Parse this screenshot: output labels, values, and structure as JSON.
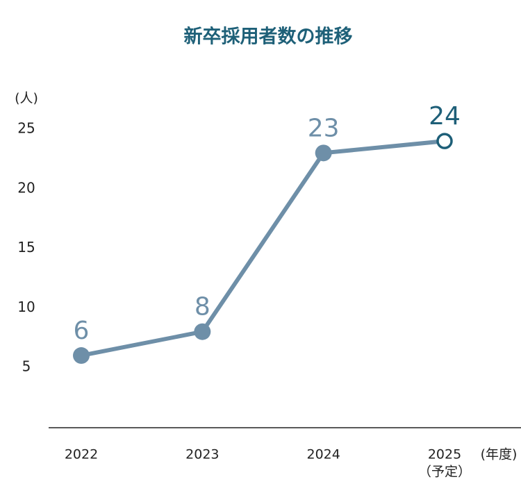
{
  "chart_data": {
    "type": "line",
    "title": "新卒採用者数の推移",
    "y_label": "(人)",
    "x_label": "(年度)",
    "categories": [
      "2022",
      "2023",
      "2024",
      "2025"
    ],
    "category_notes": [
      null,
      null,
      null,
      "（予定）"
    ],
    "series": [
      {
        "name": "新卒採用者数",
        "color": "#6e8fa8",
        "values": [
          6,
          8,
          23,
          24
        ],
        "open_markers": [
          3
        ],
        "open_color": "#1e5f78"
      }
    ],
    "ylim": [
      0,
      25
    ],
    "yticks": [
      5,
      10,
      15,
      20,
      25
    ],
    "title_color": "#1e6078",
    "grid": false
  }
}
